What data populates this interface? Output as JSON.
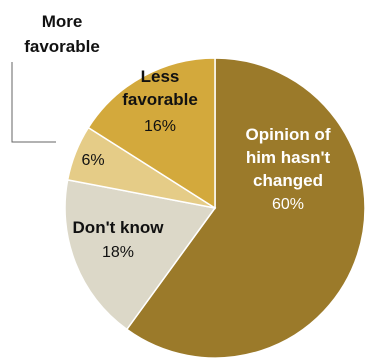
{
  "chart_data": {
    "type": "pie",
    "slices": [
      {
        "label_lines": [
          "Opinion of",
          "him hasn't",
          "changed"
        ],
        "value": 60,
        "value_label": "60%",
        "color": "#9b7a2a",
        "text_color": "#ffffff"
      },
      {
        "label_lines": [
          "Don't know"
        ],
        "value": 18,
        "value_label": "18%",
        "color": "#dcd8c8",
        "text_color": "#111111"
      },
      {
        "label_lines": [],
        "value": 6,
        "value_label": "6%",
        "color": "#e5cc87",
        "text_color": "#111111"
      },
      {
        "label_lines": [
          "Less",
          "favorable"
        ],
        "value": 16,
        "value_label": "16%",
        "color": "#d3a93c",
        "text_color": "#111111"
      }
    ],
    "callout": {
      "label_lines": [
        "More",
        "favorable"
      ]
    }
  }
}
